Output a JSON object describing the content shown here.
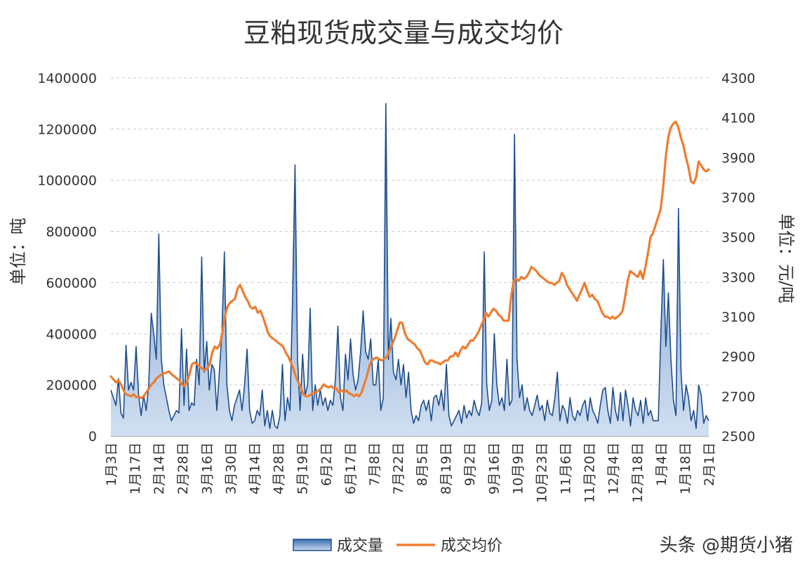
{
  "chart_data": {
    "type": "area+line",
    "title": "豆粕现货成交量与成交均价",
    "ylabel_left": "单位：吨",
    "ylabel_right": "单位：元/吨",
    "ylim_left": [
      0,
      1400000
    ],
    "ylim_right": [
      2500,
      4300
    ],
    "yticks_left": [
      "0",
      "200000",
      "400000",
      "600000",
      "800000",
      "1000000",
      "1200000",
      "1400000"
    ],
    "yticks_right": [
      "2500",
      "2700",
      "2900",
      "3100",
      "3300",
      "3500",
      "3700",
      "3900",
      "4100",
      "4300"
    ],
    "x_ticks": [
      "1月3日",
      "1月17日",
      "2月14日",
      "2月28日",
      "3月16日",
      "3月30日",
      "4月14日",
      "4月28日",
      "5月19日",
      "6月2日",
      "6月17日",
      "7月8日",
      "7月22日",
      "8月5日",
      "8月19日",
      "9月2日",
      "9月16日",
      "10月9日",
      "10月23日",
      "11月6日",
      "11月20日",
      "12月4日",
      "12月18日",
      "1月4日",
      "1月18日",
      "2月1日"
    ],
    "legend_placement": "bottom",
    "grid": true,
    "series": [
      {
        "name": "成交量",
        "axis": "left",
        "style": "area",
        "color": "#1f4e8c",
        "values": [
          180000,
          150000,
          120000,
          225000,
          90000,
          70000,
          355000,
          180000,
          210000,
          180000,
          350000,
          160000,
          80000,
          160000,
          100000,
          200000,
          480000,
          400000,
          300000,
          790000,
          300000,
          200000,
          150000,
          100000,
          60000,
          80000,
          100000,
          90000,
          420000,
          120000,
          340000,
          100000,
          130000,
          120000,
          300000,
          200000,
          700000,
          250000,
          370000,
          180000,
          280000,
          260000,
          100000,
          250000,
          400000,
          720000,
          200000,
          100000,
          60000,
          120000,
          150000,
          180000,
          100000,
          200000,
          340000,
          100000,
          50000,
          60000,
          100000,
          80000,
          180000,
          40000,
          100000,
          30000,
          100000,
          40000,
          30000,
          80000,
          280000,
          60000,
          150000,
          100000,
          530000,
          1060000,
          300000,
          100000,
          320000,
          160000,
          200000,
          500000,
          100000,
          200000,
          120000,
          180000,
          120000,
          150000,
          100000,
          140000,
          120000,
          220000,
          430000,
          150000,
          100000,
          320000,
          220000,
          380000,
          240000,
          180000,
          220000,
          330000,
          490000,
          330000,
          300000,
          380000,
          200000,
          200000,
          300000,
          100000,
          150000,
          1300000,
          300000,
          460000,
          250000,
          220000,
          300000,
          200000,
          280000,
          150000,
          250000,
          100000,
          50000,
          80000,
          60000,
          120000,
          140000,
          100000,
          140000,
          60000,
          150000,
          160000,
          120000,
          180000,
          100000,
          280000,
          80000,
          40000,
          60000,
          80000,
          100000,
          50000,
          120000,
          70000,
          100000,
          80000,
          140000,
          100000,
          80000,
          130000,
          720000,
          200000,
          100000,
          140000,
          400000,
          200000,
          120000,
          150000,
          100000,
          300000,
          120000,
          140000,
          1180000,
          300000,
          150000,
          200000,
          100000,
          150000,
          100000,
          80000,
          120000,
          160000,
          100000,
          120000,
          60000,
          140000,
          90000,
          80000,
          150000,
          250000,
          60000,
          120000,
          100000,
          50000,
          150000,
          80000,
          60000,
          100000,
          80000,
          120000,
          140000,
          60000,
          150000,
          100000,
          80000,
          50000,
          120000,
          180000,
          190000,
          100000,
          50000,
          190000,
          100000,
          60000,
          170000,
          60000,
          180000,
          120000,
          40000,
          150000,
          100000,
          80000,
          140000,
          50000,
          150000,
          80000,
          100000,
          60000,
          60000,
          60000,
          400000,
          690000,
          350000,
          560000,
          300000,
          140000,
          80000,
          890000,
          250000,
          100000,
          200000,
          150000,
          60000,
          100000,
          30000,
          200000,
          160000,
          50000,
          80000,
          60000
        ]
      },
      {
        "name": "成交均价",
        "axis": "right",
        "style": "line",
        "color": "#ed7d31",
        "values": [
          2800,
          2785,
          2770,
          2780,
          2760,
          2730,
          2710,
          2705,
          2700,
          2710,
          2695,
          2700,
          2690,
          2700,
          2720,
          2740,
          2760,
          2770,
          2790,
          2800,
          2810,
          2815,
          2820,
          2825,
          2810,
          2800,
          2790,
          2780,
          2760,
          2750,
          2770,
          2810,
          2860,
          2870,
          2860,
          2850,
          2840,
          2830,
          2840,
          2860,
          2920,
          2950,
          2940,
          2960,
          3020,
          3100,
          3150,
          3170,
          3180,
          3190,
          3240,
          3260,
          3230,
          3200,
          3180,
          3150,
          3140,
          3150,
          3120,
          3130,
          3100,
          3060,
          3020,
          3000,
          2990,
          2980,
          2970,
          2960,
          2950,
          2920,
          2900,
          2870,
          2840,
          2800,
          2770,
          2740,
          2710,
          2700,
          2700,
          2710,
          2720,
          2720,
          2730,
          2740,
          2760,
          2750,
          2745,
          2750,
          2740,
          2740,
          2720,
          2730,
          2720,
          2730,
          2715,
          2710,
          2700,
          2710,
          2700,
          2720,
          2760,
          2800,
          2850,
          2880,
          2890,
          2895,
          2885,
          2880,
          2890,
          2900,
          2930,
          2960,
          2990,
          3030,
          3070,
          3070,
          3020,
          2990,
          2980,
          2970,
          2960,
          2940,
          2930,
          2900,
          2870,
          2860,
          2880,
          2880,
          2870,
          2870,
          2860,
          2870,
          2880,
          2880,
          2900,
          2900,
          2920,
          2900,
          2930,
          2950,
          2940,
          2960,
          2980,
          2980,
          3000,
          3020,
          3050,
          3080,
          3120,
          3100,
          3120,
          3140,
          3130,
          3110,
          3100,
          3080,
          3080,
          3080,
          3200,
          3280,
          3290,
          3280,
          3300,
          3290,
          3300,
          3320,
          3350,
          3340,
          3330,
          3310,
          3300,
          3290,
          3280,
          3270,
          3270,
          3260,
          3270,
          3280,
          3320,
          3300,
          3260,
          3240,
          3220,
          3200,
          3180,
          3210,
          3240,
          3270,
          3230,
          3200,
          3210,
          3190,
          3180,
          3150,
          3120,
          3100,
          3100,
          3090,
          3100,
          3090,
          3100,
          3110,
          3130,
          3200,
          3280,
          3330,
          3320,
          3310,
          3300,
          3330,
          3290,
          3350,
          3420,
          3500,
          3520,
          3560,
          3600,
          3640,
          3750,
          3900,
          4000,
          4050,
          4070,
          4080,
          4050,
          4000,
          3960,
          3900,
          3850,
          3780,
          3770,
          3800,
          3880,
          3860,
          3840,
          3830,
          3840
        ]
      }
    ]
  },
  "watermark": "头条 @期货小猪"
}
